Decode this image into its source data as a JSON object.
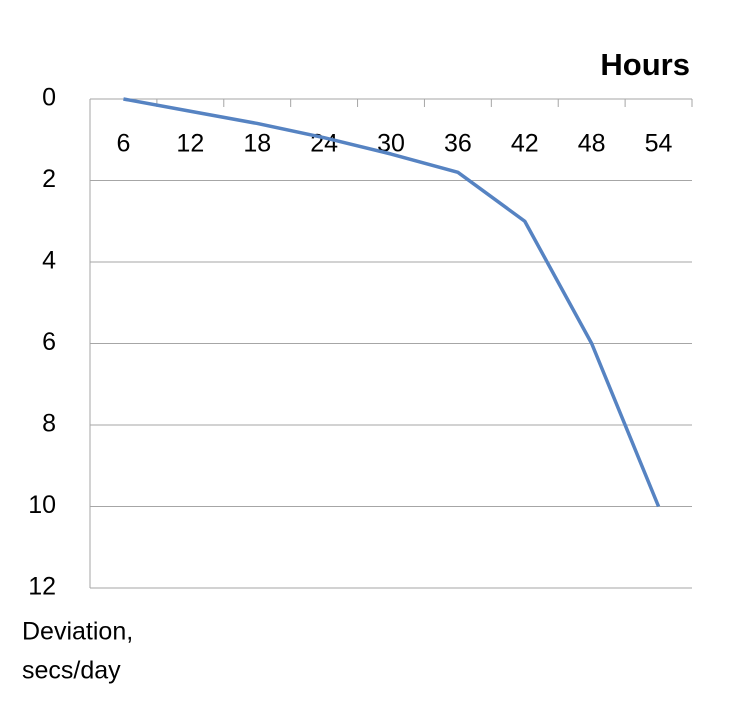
{
  "chart_data": {
    "type": "line",
    "title": "Hours",
    "y_label_lines": [
      "Deviation,",
      "secs/day"
    ],
    "categories": [
      "6",
      "12",
      "18",
      "24",
      "30",
      "36",
      "42",
      "48",
      "54"
    ],
    "series": [
      {
        "color": "#5683c2",
        "values": [
          0,
          0.3,
          0.6,
          0.95,
          1.35,
          1.8,
          3,
          6,
          10
        ]
      }
    ],
    "ylim": [
      0,
      12
    ],
    "yticks": [
      0,
      2,
      4,
      6,
      8,
      10,
      12
    ],
    "y_reversed": true,
    "x_axis_position": "top",
    "grid": true
  }
}
